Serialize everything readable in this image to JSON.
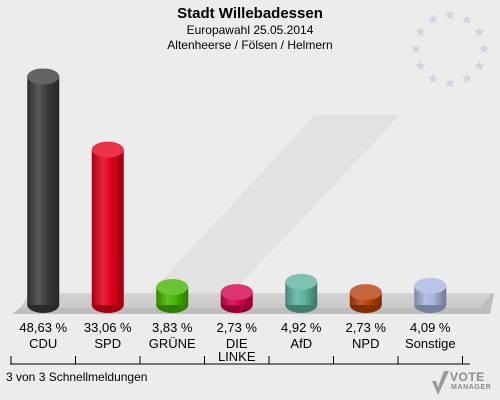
{
  "header": {
    "title": "Stadt Willebadessen",
    "subtitle": "Europawahl 25.05.2014",
    "subtitle2": "Altenheerse / Fölsen / Helmern"
  },
  "footer": {
    "status": "3 von 3 Schnellmeldungen"
  },
  "logo": {
    "line1": "VOTE",
    "line2": "MANAGER"
  },
  "chart_data": {
    "type": "bar",
    "categories": [
      "CDU",
      "SPD",
      "GRÜNE",
      "DIE LINKE",
      "AfD",
      "NPD",
      "Sonstige"
    ],
    "values": [
      48.63,
      33.06,
      3.83,
      2.73,
      4.92,
      2.73,
      4.09
    ],
    "value_labels": [
      "48,63 %",
      "33,06 %",
      "3,83 %",
      "2,73 %",
      "4,92 %",
      "2,73 %",
      "4,09 %"
    ],
    "colors": [
      "#3c3c3c",
      "#e3001b",
      "#46b500",
      "#d6004e",
      "#5db3a0",
      "#b8400b",
      "#a9b5e0"
    ],
    "title": "Stadt Willebadessen",
    "ylim": [
      0,
      50
    ],
    "grid": false,
    "legend": "none"
  }
}
